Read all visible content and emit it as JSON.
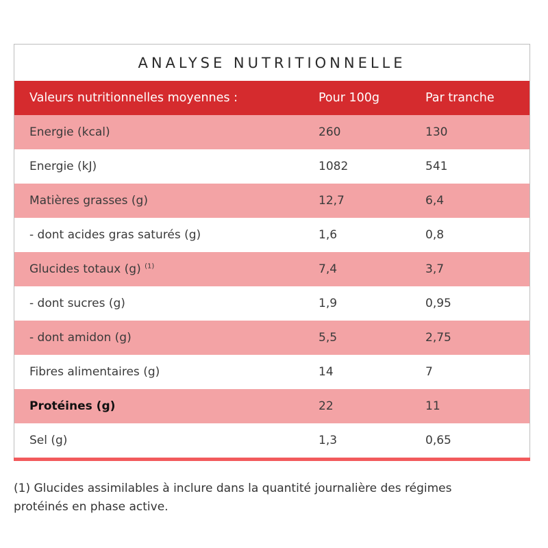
{
  "title": "ANALYSE NUTRITIONNELLE",
  "header": [
    "Valeurs nutritionnelles moyennes :",
    "Pour 100g",
    "Par tranche"
  ],
  "rows": [
    {
      "label": "Energie (kcal)",
      "per100": "260",
      "slice": "130"
    },
    {
      "label": "Energie (kJ)",
      "per100": "1082",
      "slice": "541"
    },
    {
      "label": "Matières grasses (g)",
      "per100": "12,7",
      "slice": "6,4"
    },
    {
      "label": "- dont acides gras saturés (g)",
      "per100": "1,6",
      "slice": "0,8"
    },
    {
      "label": "Glucides totaux (g)",
      "note": "(1)",
      "per100": "7,4",
      "slice": "3,7"
    },
    {
      "label": "- dont sucres (g)",
      "per100": "1,9",
      "slice": "0,95"
    },
    {
      "label": "- dont amidon (g)",
      "per100": "5,5",
      "slice": "2,75"
    },
    {
      "label": "Fibres alimentaires (g)",
      "per100": "14",
      "slice": "7"
    },
    {
      "label": "Protéines (g)",
      "per100": "22",
      "slice": "11"
    },
    {
      "label": "Sel (g)",
      "per100": "1,3",
      "slice": "0,65"
    }
  ],
  "footnote": "(1) Glucides assimilables à inclure dans la quantité journalière des régimes protéinés en phase active.",
  "colors": {
    "header": "#d52b2e",
    "alt_row": "#f3a3a5",
    "bottom_bar": "#f25a5c"
  }
}
